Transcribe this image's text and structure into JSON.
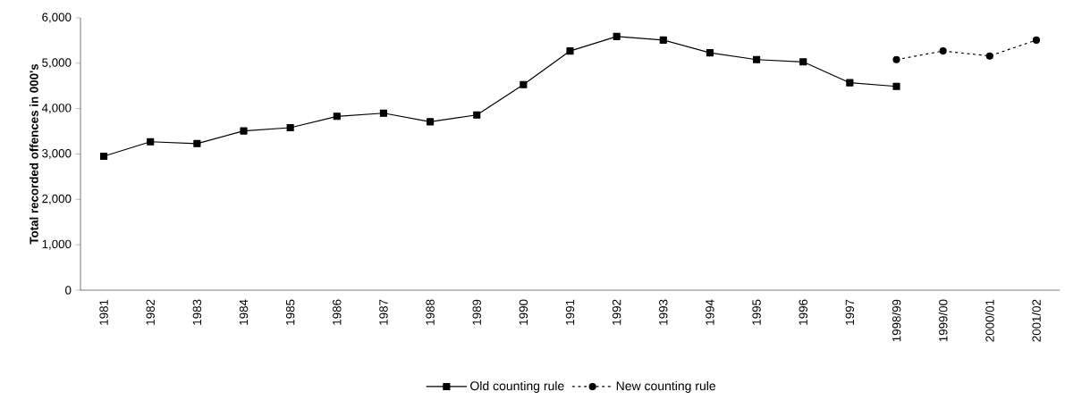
{
  "chart_data": {
    "type": "line",
    "ylabel": "Total recorded offences in 000's",
    "categories": [
      "1981",
      "1982",
      "1983",
      "1984",
      "1985",
      "1986",
      "1987",
      "1988",
      "1989",
      "1990",
      "1991",
      "1992",
      "1993",
      "1994",
      "1995",
      "1996",
      "1997",
      "1998/99",
      "1999/00",
      "2000/01",
      "2001/02"
    ],
    "series": [
      {
        "name": "Old counting rule",
        "color": "#000000",
        "marker": "square",
        "line_style": "solid",
        "values": [
          2950,
          3270,
          3230,
          3510,
          3580,
          3830,
          3900,
          3710,
          3860,
          4530,
          5270,
          5590,
          5510,
          5230,
          5080,
          5030,
          4570,
          4490,
          null,
          null,
          null
        ]
      },
      {
        "name": "New  counting rule",
        "color": "#000000",
        "marker": "circle",
        "line_style": "dotted",
        "values": [
          null,
          null,
          null,
          null,
          null,
          null,
          null,
          null,
          null,
          null,
          null,
          null,
          null,
          null,
          null,
          null,
          null,
          5080,
          5270,
          5160,
          5510
        ]
      }
    ],
    "ylim": [
      0,
      6000
    ],
    "yticks": [
      0,
      {
        "value": 1000,
        "label": "1,000"
      },
      {
        "value": 2000,
        "label": "2,000"
      },
      {
        "value": 3000,
        "label": "3,000"
      },
      {
        "value": 4000,
        "label": "4,000"
      },
      {
        "value": 5000,
        "label": "5,000"
      },
      {
        "value": 6000,
        "label": "6,000"
      }
    ],
    "grid": false,
    "legend": "bottom"
  }
}
